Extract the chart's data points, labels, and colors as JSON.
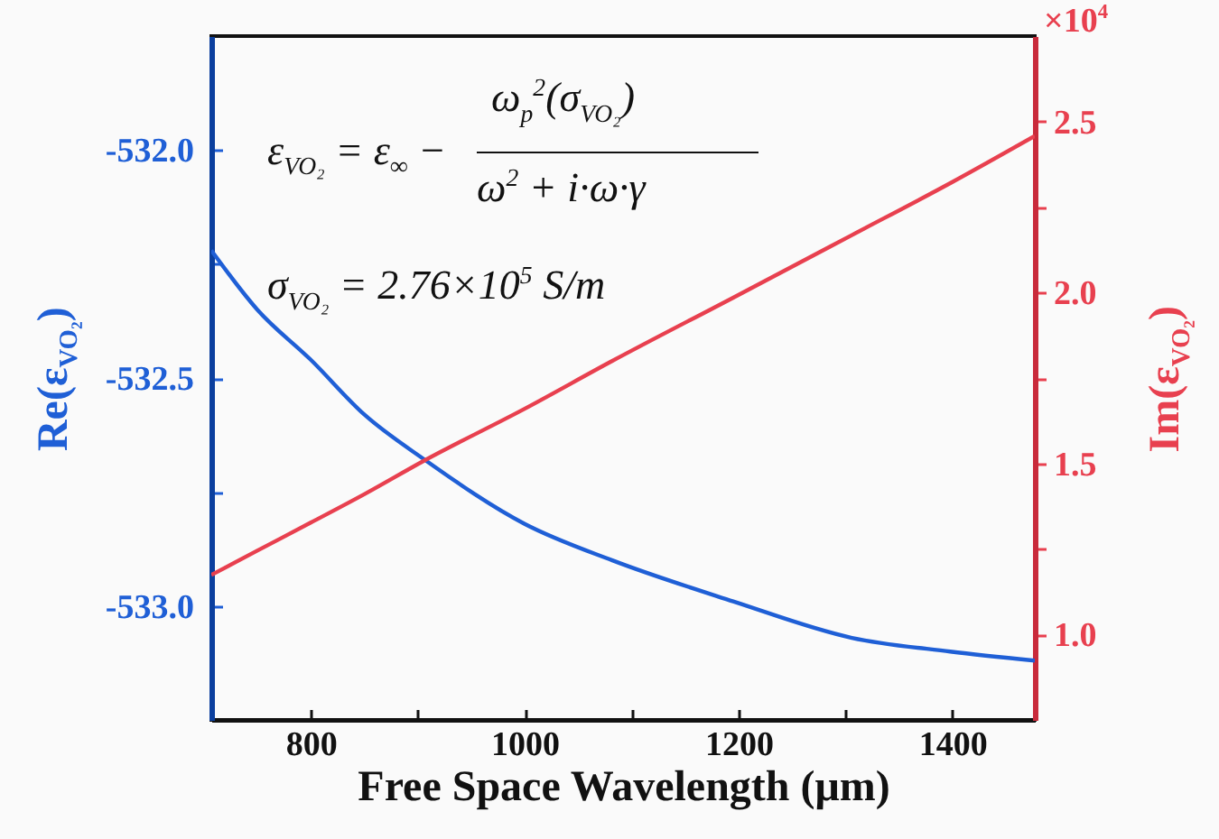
{
  "chart_data": {
    "type": "line",
    "x": [
      707,
      750,
      800,
      850,
      907,
      1000,
      1082,
      1195,
      1306,
      1398,
      1477
    ],
    "series": [
      {
        "color": "#1f5fd6",
        "values": [
          -532.22,
          -532.35,
          -532.46,
          -532.58,
          -532.68,
          -532.82,
          -532.9,
          -532.99,
          -533.07,
          -533.1,
          -533.12
        ]
      },
      {
        "color": "#e8404f",
        "axis": "y2",
        "values": [
          1.174,
          1.245,
          1.327,
          1.41,
          1.51,
          1.66,
          1.8,
          1.985,
          2.168,
          2.32,
          2.458
        ]
      }
    ],
    "xlim": [
      707,
      1477
    ],
    "xticks": [
      800,
      {
        "value": 900,
        "label": null
      },
      1000,
      {
        "value": 1100,
        "label": null
      },
      1200,
      {
        "value": 1300,
        "label": null
      },
      1400
    ],
    "ylim": [
      -533.25,
      -531.75
    ],
    "yticks": [
      {
        "value": -532.0,
        "label": "-532.0"
      },
      {
        "value": -532.25,
        "label": null
      },
      {
        "value": -532.5,
        "label": "-532.5"
      },
      {
        "value": -532.75,
        "label": null
      },
      {
        "value": -533.0,
        "label": "-533.0"
      }
    ],
    "y2lim": [
      0.75,
      2.75
    ],
    "y2ticks": [
      {
        "value": 1.0,
        "label": "1.0"
      },
      {
        "value": 1.25,
        "label": null
      },
      {
        "value": 1.5,
        "label": "1.5"
      },
      {
        "value": 1.75,
        "label": null
      },
      {
        "value": 2.0,
        "label": "2.0"
      },
      {
        "value": 2.25,
        "label": null
      },
      {
        "value": 2.5,
        "label": "2.5"
      }
    ],
    "xlabel": "Free Space Wavelength (μm)",
    "ylabel": "Re(ε$_{VO₂}$)",
    "y2label": "Im(ε$_{VO₂}$)",
    "annotations": [
      "ε$_{VO₂}$ = ε$_{∞}$ −",
      "ω$_{p}$$^{2}$(σ$_{VO₂}$)",
      "ω$^{2}$ + i·ω·γ",
      "σ$_{VO₂}$ = 2.76×10$^{5}$ S/m",
      "×10$^{4}$"
    ]
  }
}
